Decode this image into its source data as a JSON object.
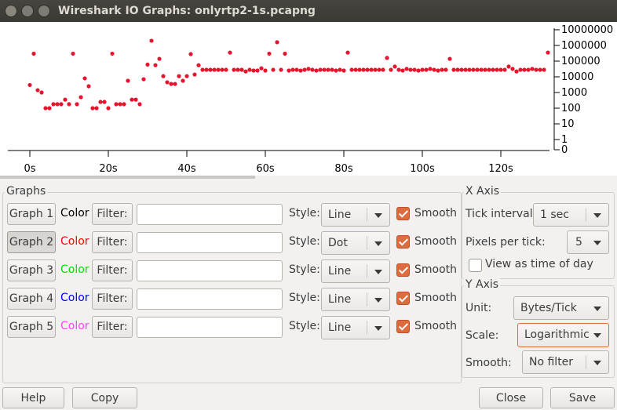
{
  "window": {
    "title": "Wireshark IO Graphs: onlyrtp2-1s.pcapng"
  },
  "chart_data": {
    "type": "scatter",
    "log_scale": true,
    "color": "#e5152e",
    "x": [
      0,
      1,
      2,
      3,
      4,
      5,
      6,
      7,
      8,
      9,
      10,
      11,
      12,
      13,
      14,
      15,
      16,
      17,
      18,
      19,
      20,
      21,
      22,
      23,
      24,
      25,
      26,
      27,
      28,
      29,
      30,
      31,
      32,
      33,
      34,
      35,
      36,
      37,
      38,
      39,
      40,
      41,
      42,
      43,
      44,
      45,
      46,
      47,
      48,
      49,
      50,
      51,
      52,
      53,
      54,
      55,
      56,
      57,
      58,
      59,
      60,
      61,
      62,
      63,
      64,
      65,
      66,
      67,
      68,
      69,
      70,
      71,
      72,
      73,
      74,
      75,
      76,
      77,
      78,
      79,
      80,
      81,
      82,
      83,
      84,
      85,
      86,
      87,
      88,
      89,
      90,
      91,
      92,
      93,
      94,
      95,
      96,
      97,
      98,
      99,
      100,
      101,
      102,
      103,
      104,
      105,
      106,
      107,
      108,
      109,
      110,
      111,
      112,
      113,
      114,
      115,
      116,
      117,
      118,
      119,
      120,
      121,
      122,
      123,
      124,
      125,
      126,
      127,
      128,
      129,
      130,
      131,
      132
    ],
    "values": [
      3000,
      300000,
      1400,
      1000,
      100,
      100,
      180,
      180,
      180,
      350,
      180,
      300000,
      180,
      500,
      8000,
      2500,
      100,
      100,
      250,
      250,
      100,
      300000,
      180,
      180,
      180,
      5600,
      350,
      350,
      180,
      7000,
      60000,
      2000000,
      55000,
      140000,
      11000,
      4500,
      3500,
      3500,
      11000,
      5600,
      11000,
      280000,
      14000,
      55000,
      28000,
      28000,
      28000,
      28000,
      28000,
      28000,
      28000,
      350000,
      28000,
      28000,
      28000,
      22000,
      28000,
      25000,
      25000,
      35000,
      25000,
      300000,
      28000,
      1600000,
      28000,
      300000,
      25000,
      28000,
      28000,
      25000,
      28000,
      32000,
      28000,
      25000,
      28000,
      28000,
      28000,
      28000,
      25000,
      28000,
      25000,
      350000,
      28000,
      28000,
      28000,
      28000,
      28000,
      28000,
      28000,
      28000,
      28000,
      160000,
      28000,
      45000,
      28000,
      25000,
      32000,
      28000,
      28000,
      25000,
      28000,
      28000,
      32000,
      28000,
      25000,
      28000,
      28000,
      140000,
      28000,
      28000,
      28000,
      28000,
      28000,
      28000,
      28000,
      28000,
      28000,
      28000,
      28000,
      28000,
      28000,
      28000,
      45000,
      32000,
      22000,
      28000,
      28000,
      28000,
      32000,
      28000,
      28000,
      28000,
      350000
    ],
    "xlim": [
      -5.6,
      132.4
    ],
    "xticks": [
      {
        "value": 0,
        "label": "0s"
      },
      {
        "value": 20,
        "label": "20s"
      },
      {
        "value": 40,
        "label": "40s"
      },
      {
        "value": 60,
        "label": "60s"
      },
      {
        "value": 80,
        "label": "80s"
      },
      {
        "value": 100,
        "label": "100s"
      },
      {
        "value": 120,
        "label": "120s"
      }
    ],
    "ylim": [
      0,
      25000000
    ],
    "yticks": [
      0,
      1,
      10,
      100,
      1000,
      10000,
      100000,
      1000000,
      10000000
    ]
  },
  "graphs": {
    "title": "Graphs",
    "rows": [
      {
        "button": "Graph 1",
        "color_label": "Color",
        "text_color": "#000000",
        "filter_label": "Filter:",
        "style_label": "Style:",
        "style": "Line",
        "smooth": "Smooth",
        "checked": true,
        "selected": false
      },
      {
        "button": "Graph 2",
        "color_label": "Color",
        "text_color": "#ff0000",
        "filter_label": "Filter:",
        "style_label": "Style:",
        "style": "Dot",
        "smooth": "Smooth",
        "checked": true,
        "selected": true
      },
      {
        "button": "Graph 3",
        "color_label": "Color",
        "text_color": "#00e000",
        "filter_label": "Filter:",
        "style_label": "Style:",
        "style": "Line",
        "smooth": "Smooth",
        "checked": true,
        "selected": false
      },
      {
        "button": "Graph 4",
        "color_label": "Color",
        "text_color": "#0000ff",
        "filter_label": "Filter:",
        "style_label": "Style:",
        "style": "Line",
        "smooth": "Smooth",
        "checked": true,
        "selected": false
      },
      {
        "button": "Graph 5",
        "color_label": "Color",
        "text_color": "#ff40ff",
        "filter_label": "Filter:",
        "style_label": "Style:",
        "style": "Line",
        "smooth": "Smooth",
        "checked": true,
        "selected": false
      }
    ]
  },
  "x_axis": {
    "title": "X Axis",
    "tick_interval_label": "Tick interval:",
    "tick_interval": "1 sec",
    "pixels_per_tick_label": "Pixels per tick:",
    "pixels_per_tick": 5,
    "time_of_day": "View as time of day"
  },
  "y_axis": {
    "title": "Y Axis",
    "unit_label": "Unit:",
    "unit": "Bytes/Tick",
    "scale_label": "Scale:",
    "scale": "Logarithmic",
    "smooth_label": "Smooth:",
    "smooth": "No filter"
  },
  "buttons": {
    "help": "Help",
    "copy": "Copy",
    "close": "Close",
    "save": "Save"
  }
}
